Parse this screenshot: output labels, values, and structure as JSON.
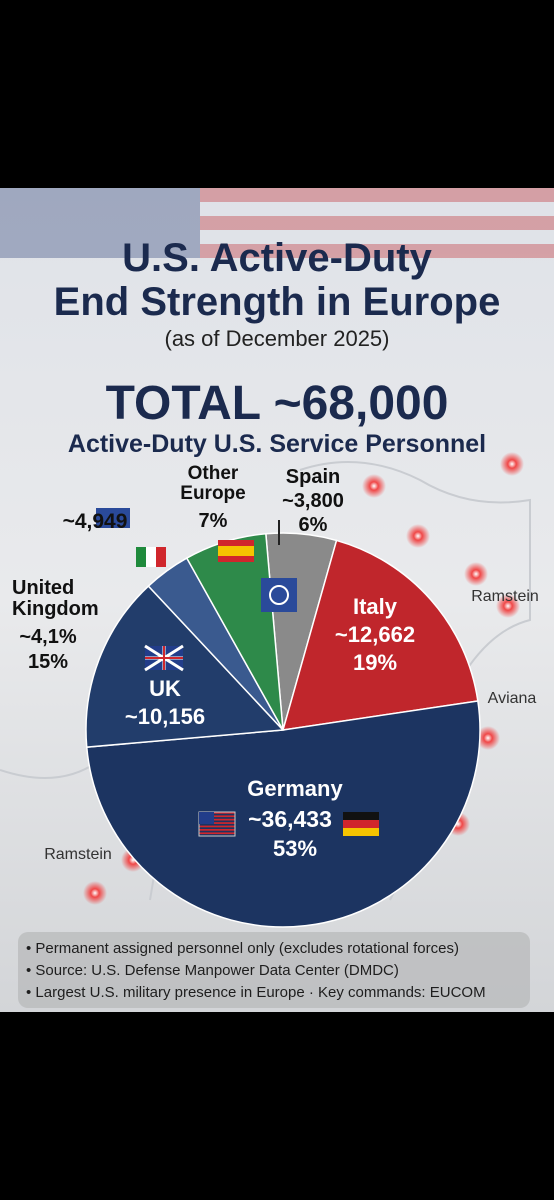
{
  "chart_data": {
    "type": "pie",
    "title": [
      "U.S. Active-Duty",
      "End Strength in Europe"
    ],
    "subtitle": "(as of December 2025)",
    "total": "TOTAL ~68,000",
    "total_caption": "Active-Duty U.S. Service Personnel",
    "categories": [
      "Spain",
      "Italy",
      "Germany",
      "UK",
      null,
      "Other Europe"
    ],
    "values": [
      6,
      19,
      53,
      15,
      4,
      7
    ],
    "value_labels": [
      "6%",
      "19%",
      "53%",
      "15%",
      null,
      "7%"
    ],
    "count_labels": [
      "~3,800",
      "~12,662",
      "~36,433",
      "~10,156",
      "~4,949",
      null
    ],
    "colors": [
      "#8a8a8a",
      "#c0262c",
      "#1c3461",
      "#223d6b",
      "#3a5a8f",
      "#2e8a4a"
    ],
    "side_label": {
      "name": "United Kingdom",
      "count": "~4,1%"
    },
    "map_labels": [
      "Ramstein",
      "Aviana",
      "Ramstein"
    ],
    "notes": [
      "• Permanent assigned personnel only (excludes rotational forces)",
      "• Source: U.S. Defense Manpower Data Center (DMDC)",
      "• Largest U.S. military presence in Europe · Key commands: EUCOM"
    ]
  }
}
